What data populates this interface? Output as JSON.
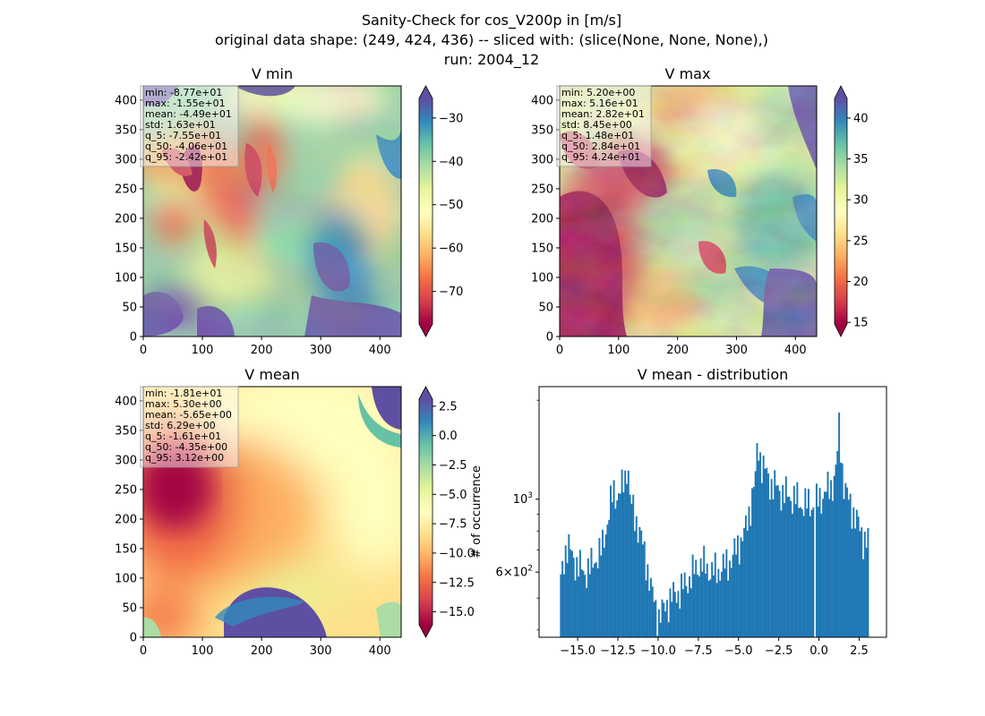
{
  "figure": {
    "title_lines": [
      "Sanity-Check for cos_V200p in [m/s]",
      "original data shape: (249, 424, 436) -- sliced with: (slice(None, None, None),)",
      "run: 2004_12"
    ]
  },
  "chart_data": [
    {
      "type": "heatmap",
      "title": "V min",
      "xlim": [
        0,
        436
      ],
      "ylim": [
        0,
        424
      ],
      "xticks": [
        0,
        100,
        200,
        300,
        400
      ],
      "yticks": [
        0,
        50,
        100,
        150,
        200,
        250,
        300,
        350,
        400
      ],
      "colormap": "Spectral",
      "colorbar": {
        "range": [
          -77.5,
          -25.5
        ],
        "ticks": [
          -70,
          -60,
          -50,
          -40,
          -30
        ],
        "tick_labels": [
          "−70",
          "−60",
          "−50",
          "−40",
          "−30"
        ],
        "extend": "both"
      },
      "stats": [
        "min: -8.77e+01",
        "max: -1.55e+01",
        "mean: -4.49e+01",
        "std: 1.63e+01",
        "q_5: -7.55e+01",
        "q_50: -4.06e+01",
        "q_95: -2.42e+01"
      ]
    },
    {
      "type": "heatmap",
      "title": "V max",
      "xlim": [
        0,
        436
      ],
      "ylim": [
        0,
        424
      ],
      "xticks": [
        0,
        100,
        200,
        300,
        400
      ],
      "yticks": [
        0,
        50,
        100,
        150,
        200,
        250,
        300,
        350,
        400
      ],
      "colormap": "Spectral",
      "colorbar": {
        "range": [
          14.8,
          42.4
        ],
        "ticks": [
          15,
          20,
          25,
          30,
          35,
          40
        ],
        "tick_labels": [
          "15",
          "20",
          "25",
          "30",
          "35",
          "40"
        ],
        "extend": "both"
      },
      "stats": [
        "min: 5.20e+00",
        "max: 5.16e+01",
        "mean: 2.82e+01",
        "std: 8.45e+00",
        "q_5: 1.48e+01",
        "q_50: 2.84e+01",
        "q_95: 4.24e+01"
      ]
    },
    {
      "type": "heatmap",
      "title": "V mean",
      "xlim": [
        0,
        436
      ],
      "ylim": [
        0,
        424
      ],
      "xticks": [
        0,
        100,
        200,
        300,
        400
      ],
      "yticks": [
        0,
        50,
        100,
        150,
        200,
        250,
        300,
        350,
        400
      ],
      "colormap": "Spectral",
      "colorbar": {
        "range": [
          -16.1,
          3.1
        ],
        "ticks": [
          -15,
          -12.5,
          -10,
          -7.5,
          -5,
          -2.5,
          0,
          2.5
        ],
        "tick_labels": [
          "−15.0",
          "−12.5",
          "−10.0",
          "−7.5",
          "−5.0",
          "−2.5",
          "0.0",
          "2.5"
        ],
        "extend": "both"
      },
      "stats": [
        "min: -1.81e+01",
        "max: 5.30e+00",
        "mean: -5.65e+00",
        "std: 6.29e+00",
        "q_5: -1.61e+01",
        "q_50: -4.35e+00",
        "q_95: 3.12e+00"
      ]
    },
    {
      "type": "bar",
      "title": "V mean - distribution",
      "xlabel": "",
      "ylabel": "# of occurrence",
      "yscale": "log",
      "xlim": [
        -17.4,
        4.2
      ],
      "ylim": [
        380,
        2200
      ],
      "xticks": [
        -15,
        -12.5,
        -10,
        -7.5,
        -5,
        -2.5,
        0,
        2.5
      ],
      "xtick_labels": [
        "−15.0",
        "−12.5",
        "−10.0",
        "−7.5",
        "−5.0",
        "−2.5",
        "0.0",
        "2.5"
      ],
      "ytick_labels": [
        {
          "value": 1000,
          "base": "10",
          "exp": "3"
        },
        {
          "value": 600,
          "mantissa": "6",
          "base": "10",
          "exp": "2"
        }
      ],
      "color": "#1f77b4",
      "bins": {
        "start": -16.1,
        "end": 3.1,
        "count": 192
      },
      "profile": [
        [
          -16.1,
          530
        ],
        [
          -15.9,
          650
        ],
        [
          -15.7,
          720
        ],
        [
          -15.5,
          700
        ],
        [
          -15.3,
          665
        ],
        [
          -15.0,
          630
        ],
        [
          -14.6,
          600
        ],
        [
          -14.2,
          620
        ],
        [
          -13.9,
          660
        ],
        [
          -13.5,
          700
        ],
        [
          -13.1,
          880
        ],
        [
          -12.9,
          1000
        ],
        [
          -12.7,
          1070
        ],
        [
          -12.6,
          1020
        ],
        [
          -12.3,
          1060
        ],
        [
          -12.0,
          1180
        ],
        [
          -11.9,
          1350
        ],
        [
          -11.75,
          1000
        ],
        [
          -11.5,
          900
        ],
        [
          -11.2,
          820
        ],
        [
          -10.9,
          700
        ],
        [
          -10.6,
          600
        ],
        [
          -10.4,
          520
        ],
        [
          -10.2,
          480
        ],
        [
          -10.0,
          440
        ],
        [
          -9.7,
          455
        ],
        [
          -9.4,
          490
        ],
        [
          -9.0,
          510
        ],
        [
          -8.6,
          530
        ],
        [
          -8.2,
          560
        ],
        [
          -7.8,
          600
        ],
        [
          -7.4,
          640
        ],
        [
          -7.0,
          620
        ],
        [
          -6.6,
          600
        ],
        [
          -6.2,
          610
        ],
        [
          -5.8,
          630
        ],
        [
          -5.4,
          660
        ],
        [
          -5.0,
          730
        ],
        [
          -4.6,
          790
        ],
        [
          -4.4,
          880
        ],
        [
          -4.2,
          1000
        ],
        [
          -3.95,
          1150
        ],
        [
          -3.8,
          1500
        ],
        [
          -3.6,
          1300
        ],
        [
          -3.3,
          1200
        ],
        [
          -3.0,
          1120
        ],
        [
          -2.6,
          1080
        ],
        [
          -2.2,
          1040
        ],
        [
          -1.8,
          1020
        ],
        [
          -1.4,
          1000
        ],
        [
          -1.0,
          960
        ],
        [
          -0.6,
          970
        ],
        [
          -0.3,
          960
        ],
        [
          0.0,
          1000
        ],
        [
          0.4,
          1050
        ],
        [
          0.8,
          1100
        ],
        [
          1.1,
          1250
        ],
        [
          1.25,
          1650
        ],
        [
          1.5,
          1150
        ],
        [
          1.8,
          1000
        ],
        [
          2.1,
          930
        ],
        [
          2.5,
          820
        ],
        [
          2.8,
          760
        ],
        [
          3.1,
          740
        ]
      ],
      "notes": [
        "Empty bin at x ≈ -0.2 (white gap)"
      ]
    }
  ]
}
